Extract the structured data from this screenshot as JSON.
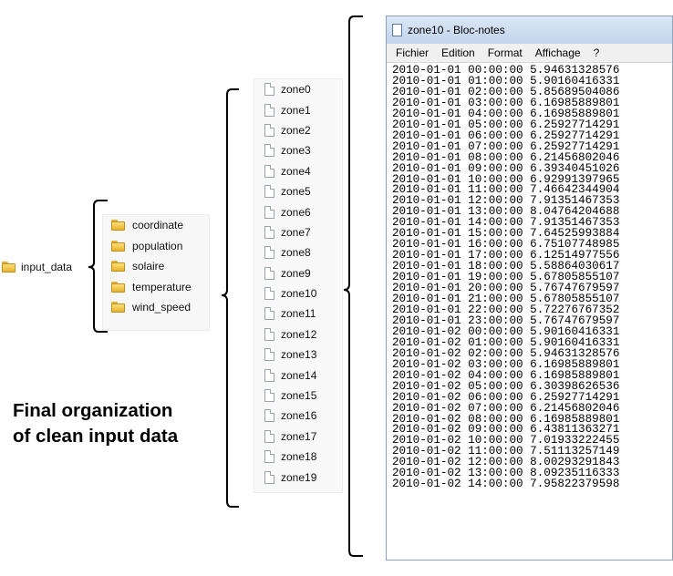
{
  "root": {
    "label": "input_data",
    "icon": "folder-icon"
  },
  "folders": [
    "coordinate",
    "population",
    "solaire",
    "temperature",
    "wind_speed"
  ],
  "zones": [
    "zone0",
    "zone1",
    "zone2",
    "zone3",
    "zone4",
    "zone5",
    "zone6",
    "zone7",
    "zone8",
    "zone9",
    "zone10",
    "zone11",
    "zone12",
    "zone13",
    "zone14",
    "zone15",
    "zone16",
    "zone17",
    "zone18",
    "zone19"
  ],
  "notepad": {
    "title": "zone10 - Bloc-notes",
    "menu": [
      "Fichier",
      "Edition",
      "Format",
      "Affichage",
      "?"
    ],
    "lines": [
      "2010-01-01 00:00:00 5.94631328576",
      "2010-01-01 01:00:00 5.90160416331",
      "2010-01-01 02:00:00 5.85689504086",
      "2010-01-01 03:00:00 6.16985889801",
      "2010-01-01 04:00:00 6.16985889801",
      "2010-01-01 05:00:00 6.25927714291",
      "2010-01-01 06:00:00 6.25927714291",
      "2010-01-01 07:00:00 6.25927714291",
      "2010-01-01 08:00:00 6.21456802046",
      "2010-01-01 09:00:00 6.39340451026",
      "2010-01-01 10:00:00 6.92991397965",
      "2010-01-01 11:00:00 7.46642344904",
      "2010-01-01 12:00:00 7.91351467353",
      "2010-01-01 13:00:00 8.04764204688",
      "2010-01-01 14:00:00 7.91351467353",
      "2010-01-01 15:00:00 7.64525993884",
      "2010-01-01 16:00:00 6.75107748985",
      "2010-01-01 17:00:00 6.12514977556",
      "2010-01-01 18:00:00 5.58864030617",
      "2010-01-01 19:00:00 5.67805855107",
      "2010-01-01 20:00:00 5.76747679597",
      "2010-01-01 21:00:00 5.67805855107",
      "2010-01-01 22:00:00 5.72276767352",
      "2010-01-01 23:00:00 5.76747679597",
      "2010-01-02 00:00:00 5.90160416331",
      "2010-01-02 01:00:00 5.90160416331",
      "2010-01-02 02:00:00 5.94631328576",
      "2010-01-02 03:00:00 6.16985889801",
      "2010-01-02 04:00:00 6.16985889801",
      "2010-01-02 05:00:00 6.30398626536",
      "2010-01-02 06:00:00 6.25927714291",
      "2010-01-02 07:00:00 6.21456802046",
      "2010-01-02 08:00:00 6.16985889801",
      "2010-01-02 09:00:00 6.43811363271",
      "2010-01-02 10:00:00 7.01933222455",
      "2010-01-02 11:00:00 7.51113257149",
      "2010-01-02 12:00:00 8.00293291843",
      "2010-01-02 13:00:00 8.09235116333",
      "2010-01-02 14:00:00 7.95822379598"
    ]
  },
  "caption": {
    "line1": "Final organization",
    "line2": "of clean input data"
  }
}
